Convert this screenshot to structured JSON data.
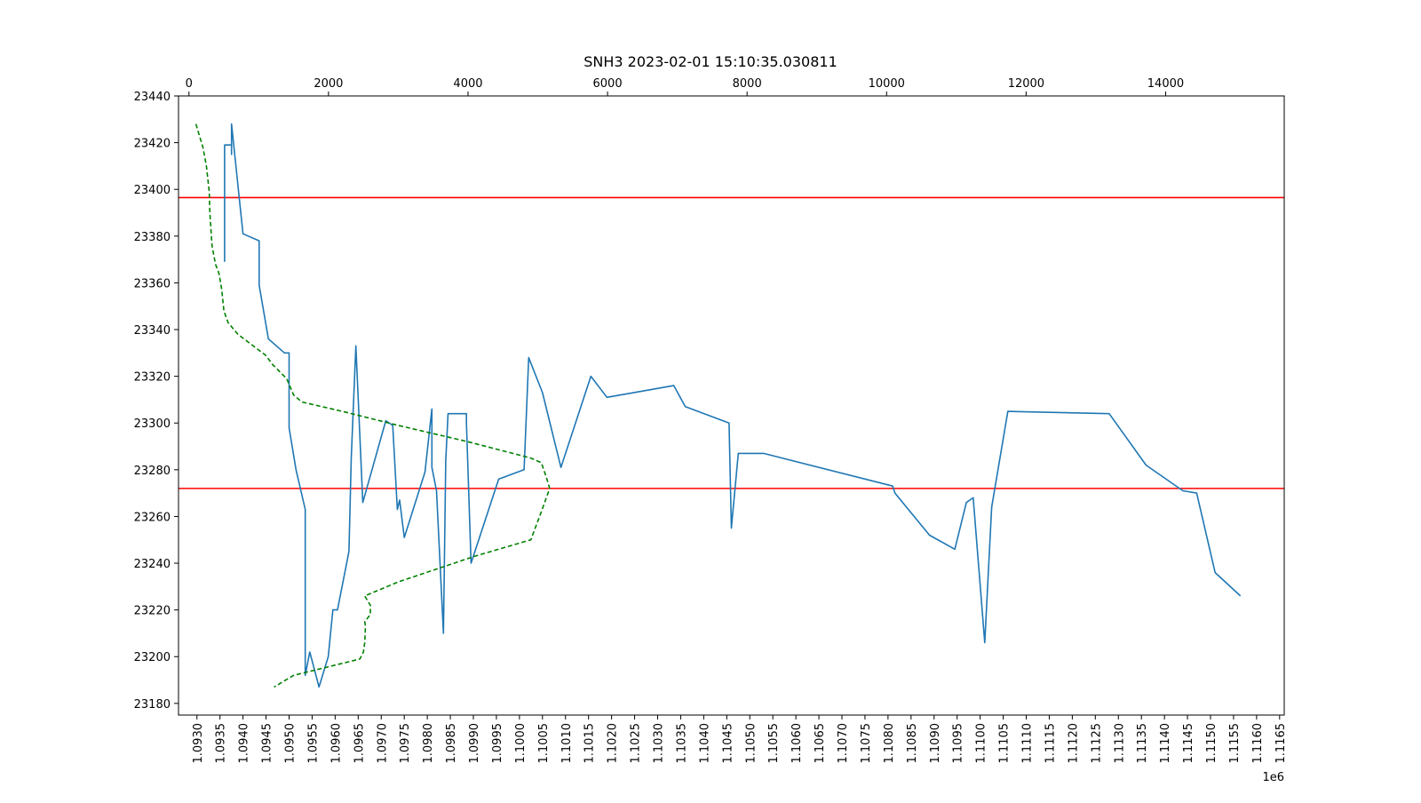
{
  "chart_data": {
    "type": "line",
    "title": "SNH3 2023-02-01 15:10:35.030811",
    "xlabel": "",
    "ylabel": "",
    "x_offset_label": "1e6",
    "xlim": [
      1092600,
      1116600
    ],
    "ylim": [
      23175,
      23440
    ],
    "x_ticks": [
      1.093,
      1.0935,
      1.094,
      1.0945,
      1.095,
      1.0955,
      1.096,
      1.0965,
      1.097,
      1.0975,
      1.098,
      1.0985,
      1.099,
      1.0995,
      1.1,
      1.1005,
      1.101,
      1.1015,
      1.102,
      1.1025,
      1.103,
      1.1035,
      1.104,
      1.1045,
      1.105,
      1.1055,
      1.106,
      1.1065,
      1.107,
      1.1075,
      1.108,
      1.1085,
      1.109,
      1.1095,
      1.11,
      1.1105,
      1.111,
      1.1115,
      1.112,
      1.1125,
      1.113,
      1.1135,
      1.114,
      1.1145,
      1.115,
      1.1155,
      1.116,
      1.1165
    ],
    "x_tick_labels": [
      "1.0930",
      "1.0935",
      "1.0940",
      "1.0945",
      "1.0950",
      "1.0955",
      "1.0960",
      "1.0965",
      "1.0970",
      "1.0975",
      "1.0980",
      "1.0985",
      "1.0990",
      "1.0995",
      "1.1000",
      "1.1005",
      "1.1010",
      "1.1015",
      "1.1020",
      "1.1025",
      "1.1030",
      "1.1035",
      "1.1040",
      "1.1045",
      "1.1050",
      "1.1055",
      "1.1060",
      "1.1065",
      "1.1070",
      "1.1075",
      "1.1080",
      "1.1085",
      "1.1090",
      "1.1095",
      "1.1100",
      "1.1105",
      "1.1110",
      "1.1115",
      "1.1120",
      "1.1125",
      "1.1130",
      "1.1135",
      "1.1140",
      "1.1145",
      "1.1150",
      "1.1155",
      "1.1160",
      "1.1165"
    ],
    "y_ticks": [
      23180,
      23200,
      23220,
      23240,
      23260,
      23280,
      23300,
      23320,
      23340,
      23360,
      23380,
      23400,
      23420,
      23440
    ],
    "y_tick_labels": [
      "23180",
      "23200",
      "23220",
      "23240",
      "23260",
      "23280",
      "23300",
      "23320",
      "23340",
      "23360",
      "23380",
      "23400",
      "23420",
      "23440"
    ],
    "top_axis": {
      "xlim": [
        -150,
        15700
      ],
      "ticks": [
        0,
        2000,
        4000,
        6000,
        8000,
        10000,
        12000,
        14000
      ],
      "tick_labels": [
        "0",
        "2000",
        "4000",
        "6000",
        "8000",
        "10000",
        "12000",
        "14000"
      ]
    },
    "hlines": [
      {
        "y": 23396.5,
        "color": "#ff0000"
      },
      {
        "y": 23272,
        "color": "#ff0000"
      }
    ],
    "series": [
      {
        "style": "solid",
        "color": "#1f77b4",
        "points": [
          [
            1093600,
            23369
          ],
          [
            1093600,
            23419
          ],
          [
            1093750,
            23419
          ],
          [
            1093750,
            23415
          ],
          [
            1093750,
            23428
          ],
          [
            1094000,
            23381
          ],
          [
            1094350,
            23378
          ],
          [
            1094350,
            23359
          ],
          [
            1094550,
            23336
          ],
          [
            1094900,
            23330
          ],
          [
            1095000,
            23330
          ],
          [
            1095000,
            23298
          ],
          [
            1095150,
            23280
          ],
          [
            1095350,
            23263
          ],
          [
            1095350,
            23192
          ],
          [
            1095450,
            23202
          ],
          [
            1095650,
            23187
          ],
          [
            1095850,
            23200
          ],
          [
            1095950,
            23220
          ],
          [
            1096050,
            23220
          ],
          [
            1096300,
            23245
          ],
          [
            1096350,
            23285
          ],
          [
            1096450,
            23333
          ],
          [
            1096600,
            23266
          ],
          [
            1097100,
            23301
          ],
          [
            1097250,
            23299
          ],
          [
            1097350,
            23263
          ],
          [
            1097400,
            23267
          ],
          [
            1097500,
            23251
          ],
          [
            1097950,
            23279
          ],
          [
            1098100,
            23306
          ],
          [
            1098100,
            23281
          ],
          [
            1098200,
            23271
          ],
          [
            1098350,
            23210
          ],
          [
            1098400,
            23284
          ],
          [
            1098450,
            23304
          ],
          [
            1098850,
            23304
          ],
          [
            1098850,
            23300
          ],
          [
            1098950,
            23240
          ],
          [
            1099550,
            23276
          ],
          [
            1100100,
            23280
          ],
          [
            1100200,
            23328
          ],
          [
            1100500,
            23313
          ],
          [
            1100900,
            23281
          ],
          [
            1101550,
            23320
          ],
          [
            1101900,
            23311
          ],
          [
            1103350,
            23316
          ],
          [
            1103600,
            23307
          ],
          [
            1104550,
            23300
          ],
          [
            1104600,
            23255
          ],
          [
            1104750,
            23287
          ],
          [
            1105300,
            23287
          ],
          [
            1108100,
            23273
          ],
          [
            1108150,
            23270
          ],
          [
            1108900,
            23252
          ],
          [
            1109450,
            23246
          ],
          [
            1109700,
            23266
          ],
          [
            1109850,
            23268
          ],
          [
            1110100,
            23206
          ],
          [
            1110250,
            23264
          ],
          [
            1110600,
            23305
          ],
          [
            1112800,
            23304
          ],
          [
            1113600,
            23282
          ],
          [
            1114400,
            23271
          ],
          [
            1114700,
            23270
          ],
          [
            1115100,
            23236
          ],
          [
            1115650,
            23226
          ]
        ]
      },
      {
        "style": "dashed",
        "color": "#008000",
        "points": [
          [
            100,
            23428
          ],
          [
            200,
            23418
          ],
          [
            250,
            23410
          ],
          [
            290,
            23399
          ],
          [
            300,
            23390
          ],
          [
            330,
            23376
          ],
          [
            380,
            23368
          ],
          [
            430,
            23364
          ],
          [
            470,
            23357
          ],
          [
            500,
            23348
          ],
          [
            560,
            23343
          ],
          [
            700,
            23338
          ],
          [
            1100,
            23329
          ],
          [
            1200,
            23325
          ],
          [
            1400,
            23319
          ],
          [
            1500,
            23312
          ],
          [
            1620,
            23309
          ],
          [
            2200,
            23305
          ],
          [
            3000,
            23299
          ],
          [
            4000,
            23292
          ],
          [
            4900,
            23285
          ],
          [
            5050,
            23283
          ],
          [
            5120,
            23277
          ],
          [
            5170,
            23272
          ],
          [
            5050,
            23262
          ],
          [
            4900,
            23250
          ],
          [
            4100,
            23243
          ],
          [
            3600,
            23238
          ],
          [
            3000,
            23232
          ],
          [
            2520,
            23226
          ],
          [
            2600,
            23222
          ],
          [
            2600,
            23218
          ],
          [
            2520,
            23215
          ],
          [
            2530,
            23213
          ],
          [
            2520,
            23206
          ],
          [
            2500,
            23202
          ],
          [
            2450,
            23199
          ],
          [
            1500,
            23192
          ],
          [
            1220,
            23187
          ]
        ]
      }
    ]
  }
}
